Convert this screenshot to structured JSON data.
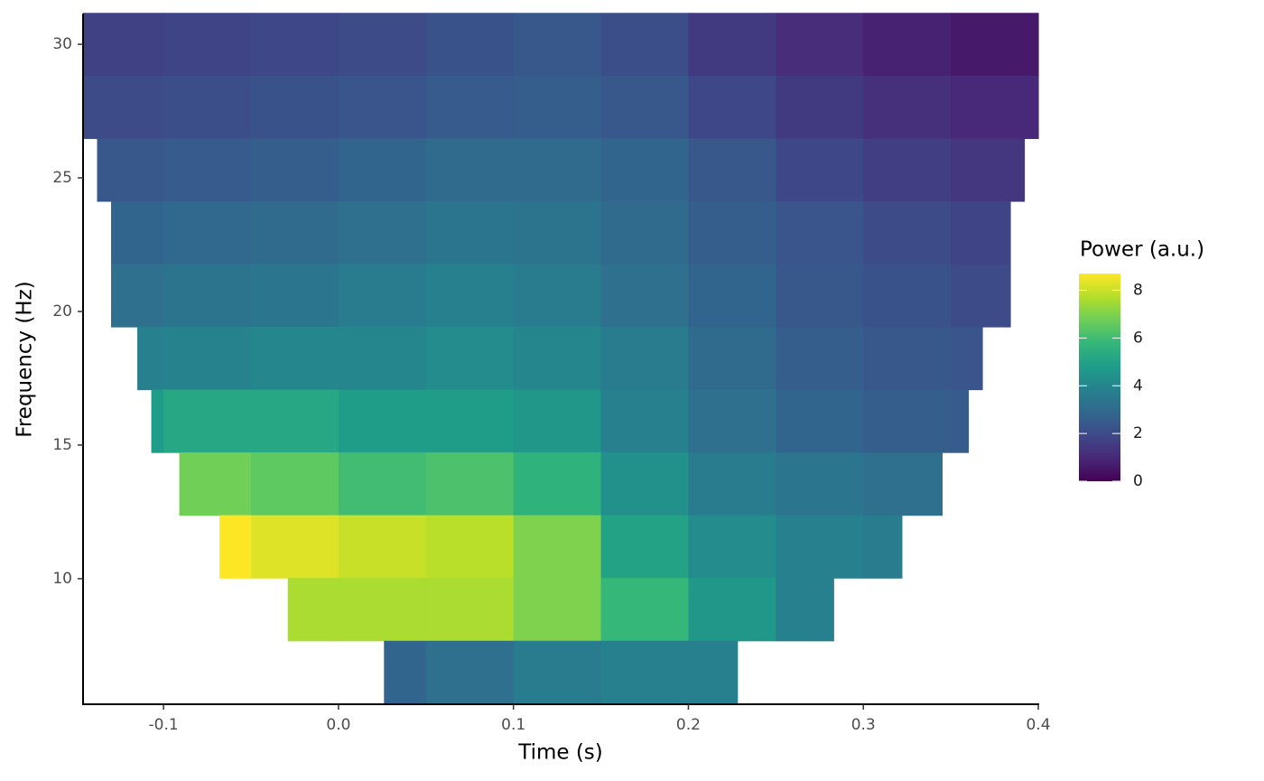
{
  "chart_data": {
    "type": "heatmap",
    "x_label": "Time (s)",
    "y_label": "Frequency (Hz)",
    "colorbar_title": "Power (a.u.)",
    "colormap": "viridis",
    "clim": [
      0,
      8.7
    ],
    "cticks": [
      0,
      2,
      4,
      6,
      8
    ],
    "xlim": [
      -0.146,
      0.4
    ],
    "xticks": [
      -0.1,
      {
        "value": 0,
        "label": "0.0"
      },
      0.1,
      0.2,
      0.3,
      0.4
    ],
    "ylim": [
      5.3,
      31.15
    ],
    "yticks": [
      10,
      15,
      20,
      25,
      30
    ],
    "rows": [
      {
        "frequency": 30,
        "bins": [
          -0.146,
          -0.1,
          -0.05,
          0,
          0.05,
          0.1,
          0.15,
          0.2,
          0.25,
          0.3,
          0.35,
          0.4
        ],
        "values": [
          1.7,
          1.8,
          1.9,
          2.0,
          2.2,
          2.4,
          2.1,
          1.5,
          1.1,
          0.8,
          0.6
        ]
      },
      {
        "frequency": 27.65,
        "bins": [
          -0.146,
          -0.1,
          -0.05,
          0,
          0.05,
          0.1,
          0.15,
          0.2,
          0.25,
          0.3,
          0.35,
          0.4
        ],
        "values": [
          2.0,
          2.1,
          2.2,
          2.3,
          2.5,
          2.6,
          2.4,
          1.9,
          1.5,
          1.2,
          1.0
        ]
      },
      {
        "frequency": 25.3,
        "bins": [
          -0.138,
          -0.1,
          -0.05,
          0,
          0.05,
          0.1,
          0.15,
          0.2,
          0.25,
          0.3,
          0.35,
          0.392
        ],
        "values": [
          2.4,
          2.5,
          2.6,
          2.8,
          3.0,
          3.0,
          2.8,
          2.4,
          1.9,
          1.6,
          1.4
        ]
      },
      {
        "frequency": 22.95,
        "bins": [
          -0.13,
          -0.1,
          -0.05,
          0,
          0.05,
          0.1,
          0.15,
          0.2,
          0.25,
          0.3,
          0.35,
          0.384
        ],
        "values": [
          2.8,
          2.9,
          3.0,
          3.2,
          3.4,
          3.3,
          3.0,
          2.6,
          2.3,
          2.0,
          1.8
        ]
      },
      {
        "frequency": 20.6,
        "bins": [
          -0.13,
          -0.1,
          -0.05,
          0,
          0.05,
          0.1,
          0.15,
          0.2,
          0.25,
          0.3,
          0.35,
          0.384
        ],
        "values": [
          3.2,
          3.3,
          3.4,
          3.6,
          3.8,
          3.6,
          3.2,
          2.8,
          2.4,
          2.2,
          2.0
        ]
      },
      {
        "frequency": 18.25,
        "bins": [
          -0.115,
          -0.1,
          -0.05,
          0,
          0.05,
          0.1,
          0.15,
          0.2,
          0.25,
          0.3,
          0.35,
          0.368
        ],
        "values": [
          3.8,
          3.9,
          4.0,
          4.0,
          4.2,
          4.0,
          3.6,
          3.0,
          2.6,
          2.4,
          2.3
        ]
      },
      {
        "frequency": 15.9,
        "bins": [
          -0.107,
          -0.1,
          -0.05,
          0,
          0.05,
          0.1,
          0.15,
          0.2,
          0.25,
          0.3,
          0.35,
          0.36
        ],
        "values": [
          4.8,
          5.2,
          5.2,
          4.8,
          4.8,
          4.6,
          3.8,
          3.2,
          2.8,
          2.6,
          2.5
        ]
      },
      {
        "frequency": 13.55,
        "bins": [
          -0.091,
          -0.05,
          0,
          0.05,
          0.1,
          0.15,
          0.2,
          0.25,
          0.3,
          0.345
        ],
        "values": [
          6.8,
          6.5,
          6.0,
          6.2,
          5.6,
          4.4,
          3.6,
          3.4,
          3.2
        ]
      },
      {
        "frequency": 11.2,
        "bins": [
          -0.068,
          -0.05,
          0,
          0.05,
          0.1,
          0.15,
          0.2,
          0.25,
          0.3,
          0.322
        ],
        "values": [
          8.7,
          8.3,
          8.0,
          7.8,
          7.0,
          5.0,
          4.2,
          3.8,
          3.6
        ]
      },
      {
        "frequency": 8.85,
        "bins": [
          -0.029,
          0,
          0.05,
          0.1,
          0.15,
          0.2,
          0.25,
          0.283
        ],
        "values": [
          7.6,
          7.6,
          7.6,
          7.0,
          5.8,
          4.6,
          3.8
        ]
      },
      {
        "frequency": 6.5,
        "bins": [
          0.026,
          0.05,
          0.1,
          0.15,
          0.2,
          0.228
        ],
        "values": [
          2.8,
          3.2,
          3.6,
          3.8,
          3.8
        ]
      }
    ]
  }
}
